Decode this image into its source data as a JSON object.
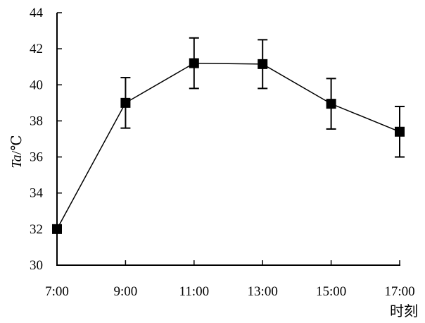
{
  "chart_data": {
    "type": "line",
    "xlabel": "时刻",
    "ylabel": "Ta/℃",
    "ylabel_parts": {
      "italic": "Ta",
      "rest": "/℃"
    },
    "categories": [
      "7:00",
      "9:00",
      "11:00",
      "13:00",
      "15:00",
      "17:00"
    ],
    "values": [
      32.0,
      39.0,
      41.2,
      41.15,
      38.95,
      37.4
    ],
    "error": [
      0.0,
      1.4,
      1.4,
      1.35,
      1.4,
      1.4
    ],
    "ylim": [
      30,
      44
    ],
    "yticks": [
      "30",
      "32",
      "34",
      "36",
      "38",
      "40",
      "42",
      "44"
    ],
    "marker": "square",
    "grid": false,
    "legend": "none",
    "colors": {
      "line": "#000000",
      "marker": "#000000",
      "axis": "#000000"
    }
  }
}
